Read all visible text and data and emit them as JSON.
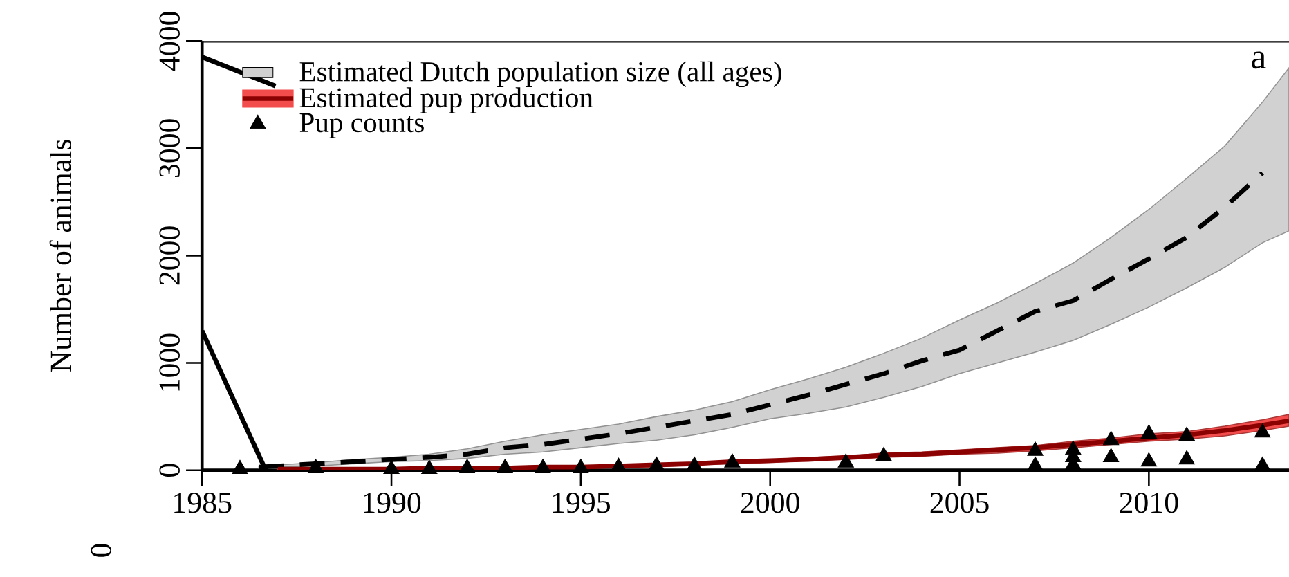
{
  "chart_data": {
    "type": "line",
    "ylabel": "Number of animals",
    "xlim": [
      1985,
      2013.7
    ],
    "ylim": [
      0,
      4000
    ],
    "xticks": [
      1985,
      1990,
      1995,
      2000,
      2005,
      2010
    ],
    "yticks": [
      0,
      1000,
      2000,
      3000,
      4000
    ],
    "grid": false,
    "legend": "top left",
    "annotations": [
      "a",
      "0"
    ],
    "series": [
      {
        "name": "Estimated Dutch population size (all ages)",
        "color": "#000000",
        "line_style": "dashed",
        "x": [
          1986.5,
          1987,
          1988,
          1989,
          1990,
          1991,
          1992,
          1993,
          1994,
          1995,
          1996,
          1997,
          1998,
          1999,
          2000,
          2001,
          2002,
          2003,
          2004,
          2005,
          2006,
          2007,
          2008,
          2009,
          2010,
          2011,
          2012,
          2013,
          2013.7
        ],
        "values": [
          30,
          40,
          60,
          80,
          100,
          120,
          150,
          210,
          240,
          290,
          340,
          400,
          460,
          520,
          610,
          700,
          800,
          900,
          1020,
          1120,
          1300,
          1480,
          1580,
          1780,
          1970,
          2170,
          2450,
          2770,
          null
        ],
        "lower": [
          20,
          30,
          40,
          60,
          80,
          90,
          110,
          150,
          170,
          210,
          250,
          280,
          330,
          400,
          480,
          530,
          590,
          680,
          780,
          900,
          1000,
          1100,
          1210,
          1360,
          1520,
          1700,
          1890,
          2120,
          2230
        ],
        "upper": [
          40,
          50,
          70,
          100,
          120,
          150,
          200,
          270,
          330,
          380,
          430,
          500,
          560,
          640,
          750,
          850,
          960,
          1090,
          1230,
          1400,
          1560,
          1740,
          1930,
          2170,
          2430,
          2720,
          3020,
          3430,
          3750
        ]
      },
      {
        "name": "Estimated pup production",
        "color": "#8b0000",
        "line_style": "solid",
        "x": [
          1987,
          1988,
          1989,
          1990,
          1991,
          1992,
          1993,
          1994,
          1995,
          1996,
          1997,
          1998,
          1999,
          2000,
          2001,
          2002,
          2003,
          2004,
          2005,
          2006,
          2007,
          2008,
          2009,
          2010,
          2011,
          2012,
          2013,
          2013.7
        ],
        "values": [
          10,
          10,
          10,
          10,
          20,
          20,
          20,
          30,
          30,
          40,
          50,
          60,
          80,
          90,
          100,
          120,
          140,
          150,
          170,
          190,
          210,
          240,
          270,
          300,
          330,
          370,
          420,
          460
        ],
        "lower": [
          0,
          0,
          10,
          10,
          10,
          10,
          10,
          20,
          20,
          30,
          30,
          50,
          60,
          70,
          90,
          100,
          120,
          130,
          150,
          160,
          180,
          210,
          240,
          270,
          290,
          320,
          370,
          410
        ],
        "upper": [
          10,
          10,
          10,
          20,
          20,
          20,
          30,
          30,
          40,
          50,
          60,
          70,
          90,
          100,
          120,
          130,
          160,
          170,
          190,
          210,
          230,
          270,
          300,
          340,
          360,
          410,
          470,
          520
        ]
      },
      {
        "name": "Pup counts",
        "type": "scatter",
        "color": "#000000",
        "marker": "triangle",
        "x": [
          1986,
          1988,
          1990,
          1991,
          1992,
          1993,
          1994,
          1995,
          1996,
          1997,
          1998,
          1999,
          2002,
          2003,
          2007,
          2007,
          2008,
          2008,
          2008,
          2009,
          2009,
          2010,
          2010,
          2011,
          2011,
          2013,
          2013
        ],
        "values": [
          10,
          20,
          10,
          10,
          20,
          20,
          20,
          20,
          30,
          40,
          40,
          70,
          70,
          130,
          180,
          40,
          190,
          120,
          50,
          280,
          120,
          340,
          80,
          320,
          100,
          350,
          40
        ]
      },
      {
        "color": "#000000",
        "line_style": "solid",
        "x": [
          1985,
          1986.94
        ],
        "values": [
          3850,
          3580
        ]
      },
      {
        "color": "#000000",
        "line_style": "solid",
        "x": [
          1985,
          1986.68
        ],
        "values": [
          1300,
          0
        ]
      }
    ]
  }
}
